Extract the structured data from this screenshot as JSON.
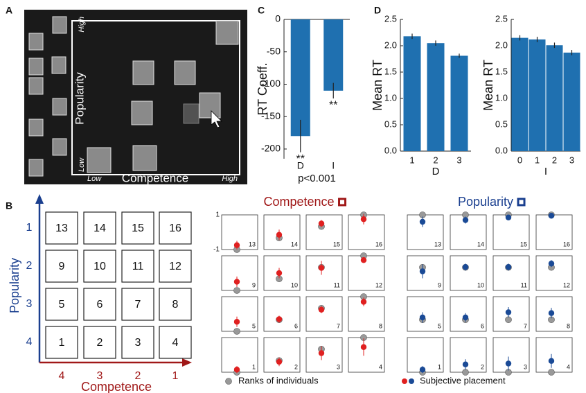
{
  "panel_labels": [
    "A",
    "B",
    "C",
    "D"
  ],
  "panel_a": {
    "y_label": "Popularity",
    "x_label": "Competence",
    "y_high": "High",
    "y_low": "Low",
    "x_low": "Low",
    "x_high": "High"
  },
  "panel_b": {
    "y_label": "Popularity",
    "x_label": "Competence",
    "y_ticks": [
      1,
      2,
      3,
      4
    ],
    "x_ticks": [
      4,
      3,
      2,
      1
    ],
    "cells": [
      13,
      14,
      15,
      16,
      9,
      10,
      11,
      12,
      5,
      6,
      7,
      8,
      1,
      2,
      3,
      4
    ]
  },
  "chart_data": [
    {
      "type": "bar",
      "categories": [
        "D",
        "I"
      ],
      "values": [
        -180,
        -110
      ],
      "errors": [
        25,
        12
      ],
      "annotations": [
        "**",
        "**"
      ],
      "note": "p<0.001",
      "ylabel": "RT Coeff.",
      "color": "#1f70b0",
      "ylim": [
        -215,
        0
      ],
      "yticks": [
        0,
        -50,
        -100,
        -150,
        -200
      ]
    },
    {
      "type": "bar",
      "categories": [
        "1",
        "2",
        "3"
      ],
      "values": [
        2.18,
        2.05,
        1.81
      ],
      "errors": [
        0.05,
        0.05,
        0.04
      ],
      "xlabel": "D",
      "ylabel": "Mean RT",
      "color": "#1f70b0",
      "ylim": [
        0,
        2.5
      ],
      "yticks": [
        {
          "value": 0,
          "label": "0.0"
        },
        0.5,
        {
          "value": 1,
          "label": "1.0"
        },
        1.5,
        {
          "value": 2,
          "label": "2.0"
        },
        2.5
      ]
    },
    {
      "type": "bar",
      "categories": [
        "0",
        "1",
        "2",
        "3"
      ],
      "values": [
        2.15,
        2.12,
        2.01,
        1.87
      ],
      "errors": [
        0.05,
        0.05,
        0.05,
        0.05
      ],
      "xlabel": "I",
      "ylabel": "Mean RT",
      "color": "#1f70b0",
      "ylim": [
        0,
        2.5
      ],
      "yticks": [
        {
          "value": 0,
          "label": "0.0"
        },
        0.5,
        {
          "value": 1,
          "label": "1.0"
        },
        1.5,
        {
          "value": 2,
          "label": "2.0"
        },
        2.5
      ]
    },
    {
      "type": "dot-panel",
      "title": "Competence",
      "color": "#a01818",
      "ylim": [
        -1,
        1
      ],
      "yticks": [
        1,
        -1
      ],
      "categories": [
        13,
        14,
        15,
        16,
        9,
        10,
        11,
        12,
        5,
        6,
        7,
        8,
        1,
        2,
        3,
        4
      ],
      "series": [
        {
          "name": "Ranks of individuals",
          "color": "#999999",
          "values": [
            -1,
            -0.33,
            0.33,
            1,
            -1,
            -0.33,
            0.33,
            1,
            -1,
            -0.33,
            0.33,
            1,
            -1,
            -0.33,
            0.33,
            1
          ]
        },
        {
          "color": "#e02020",
          "values": [
            -0.75,
            -0.15,
            0.5,
            0.75,
            -0.5,
            0.0,
            0.3,
            0.75,
            -0.45,
            -0.3,
            0.25,
            0.7,
            -0.85,
            -0.4,
            0.1,
            0.45
          ],
          "errors": [
            0.25,
            0.3,
            0.2,
            0.3,
            0.3,
            0.3,
            0.4,
            0.15,
            0.3,
            0.2,
            0.2,
            0.25,
            0.2,
            0.25,
            0.4,
            0.5
          ]
        }
      ]
    },
    {
      "type": "dot-panel",
      "title": "Popularity",
      "color": "#1a3f8f",
      "ylim": [
        -1,
        1
      ],
      "categories": [
        13,
        14,
        15,
        16,
        9,
        10,
        11,
        12,
        5,
        6,
        7,
        8,
        1,
        2,
        3,
        4
      ],
      "series": [
        {
          "color": "#999999",
          "values": [
            1,
            1,
            1,
            1,
            0.33,
            0.33,
            0.33,
            0.33,
            -0.33,
            -0.33,
            -0.33,
            -0.33,
            -1,
            -1,
            -1,
            -1
          ]
        },
        {
          "name": "Subjective placement",
          "color": "#1a4a96",
          "values": [
            0.6,
            0.7,
            0.85,
            0.95,
            0.1,
            0.35,
            0.35,
            0.55,
            -0.2,
            -0.2,
            0.1,
            0.05,
            -0.85,
            -0.55,
            -0.5,
            -0.35
          ],
          "errors": [
            0.3,
            0.2,
            0.15,
            0.1,
            0.4,
            0.2,
            0.2,
            0.2,
            0.3,
            0.25,
            0.3,
            0.3,
            0.2,
            0.3,
            0.4,
            0.4
          ]
        }
      ]
    }
  ]
}
